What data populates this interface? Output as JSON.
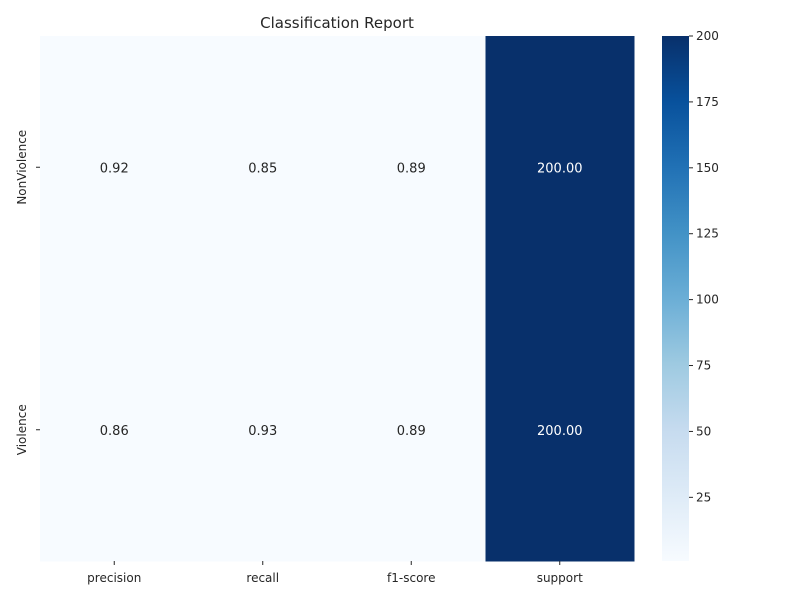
{
  "chart_data": {
    "type": "heatmap",
    "title": "Classification Report",
    "columns": [
      "precision",
      "recall",
      "f1-score",
      "support"
    ],
    "rows": [
      "NonViolence",
      "Violence"
    ],
    "values": [
      [
        0.92,
        0.85,
        0.89,
        200.0
      ],
      [
        0.86,
        0.93,
        0.89,
        200.0
      ]
    ],
    "cell_labels": [
      [
        "0.92",
        "0.85",
        "0.89",
        "200.00"
      ],
      [
        "0.86",
        "0.93",
        "0.89",
        "200.00"
      ]
    ],
    "colormap": "Blues",
    "colorbar": {
      "range": [
        0.85,
        200
      ],
      "ticks": [
        25,
        50,
        75,
        100,
        125,
        150,
        175,
        200
      ]
    },
    "low_color": "#f7fbff",
    "high_color": "#08306b"
  }
}
